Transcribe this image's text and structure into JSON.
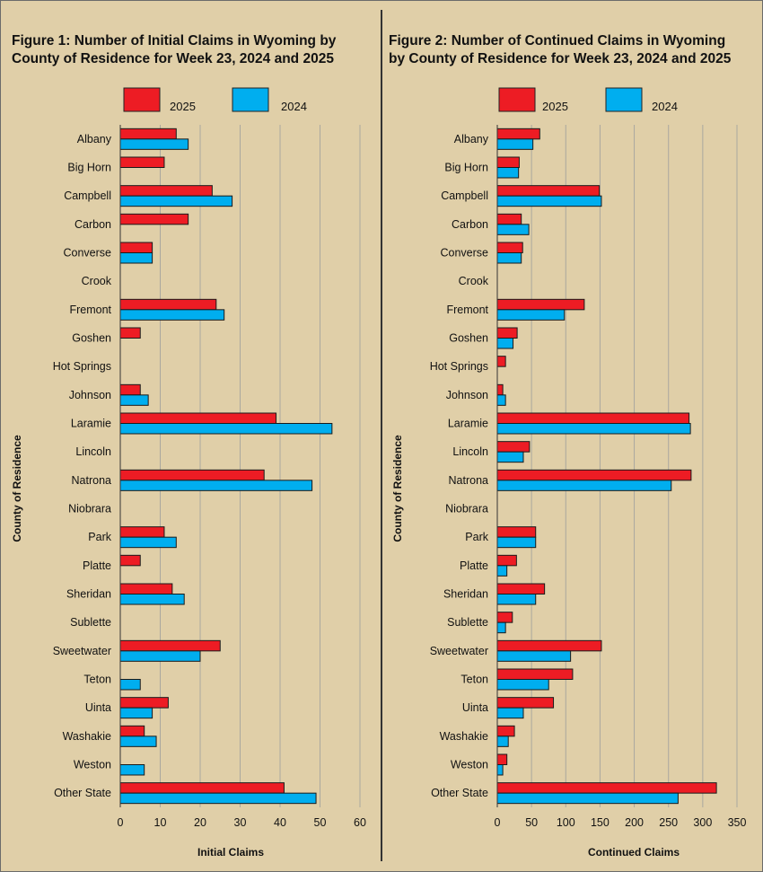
{
  "chart_data": [
    {
      "type": "bar",
      "orientation": "horizontal",
      "title": "Figure 1: Number of Initial Claims in Wyoming by County of Residence for Week 23, 2024 and 2025",
      "title_lines": [
        "Figure 1: Number of Initial Claims in Wyoming by",
        "County of Residence for Week 23, 2024 and 2025"
      ],
      "xlabel": "Initial Claims",
      "ylabel": "County of Residence",
      "xlim": [
        0,
        60
      ],
      "xticks": [
        0,
        10,
        20,
        30,
        40,
        50,
        60
      ],
      "grid": true,
      "legend_position": "top",
      "categories": [
        "Albany",
        "Big Horn",
        "Campbell",
        "Carbon",
        "Converse",
        "Crook",
        "Fremont",
        "Goshen",
        "Hot Springs",
        "Johnson",
        "Laramie",
        "Lincoln",
        "Natrona",
        "Niobrara",
        "Park",
        "Platte",
        "Sheridan",
        "Sublette",
        "Sweetwater",
        "Teton",
        "Uinta",
        "Washakie",
        "Weston",
        "Other State"
      ],
      "series": [
        {
          "name": "2025",
          "color": "#ed1c24",
          "values": [
            14,
            11,
            23,
            17,
            8,
            0,
            24,
            5,
            0,
            5,
            39,
            0,
            36,
            0,
            11,
            5,
            13,
            0,
            25,
            0,
            12,
            6,
            0,
            41
          ]
        },
        {
          "name": "2024",
          "color": "#00aeef",
          "values": [
            17,
            0,
            28,
            0,
            8,
            0,
            26,
            0,
            0,
            7,
            53,
            0,
            48,
            0,
            14,
            0,
            16,
            0,
            20,
            5,
            8,
            9,
            6,
            49
          ]
        }
      ]
    },
    {
      "type": "bar",
      "orientation": "horizontal",
      "title": "Figure 2: Number of Continued Claims in Wyoming by County of Residence for Week 23, 2024 and 2025",
      "title_lines": [
        "Figure 2: Number of Continued Claims in Wyoming",
        "by County of Residence for Week 23, 2024 and 2025"
      ],
      "xlabel": "Continued Claims",
      "ylabel": "County of Residence",
      "xlim": [
        0,
        350
      ],
      "xticks": [
        0,
        50,
        100,
        150,
        200,
        250,
        300,
        350
      ],
      "grid": true,
      "legend_position": "top",
      "categories": [
        "Albany",
        "Big Horn",
        "Campbell",
        "Carbon",
        "Converse",
        "Crook",
        "Fremont",
        "Goshen",
        "Hot Springs",
        "Johnson",
        "Laramie",
        "Lincoln",
        "Natrona",
        "Niobrara",
        "Park",
        "Platte",
        "Sheridan",
        "Sublette",
        "Sweetwater",
        "Teton",
        "Uinta",
        "Washakie",
        "Weston",
        "Other State"
      ],
      "series": [
        {
          "name": "2025",
          "color": "#ed1c24",
          "values": [
            62,
            32,
            149,
            35,
            37,
            0,
            127,
            29,
            12,
            8,
            280,
            47,
            283,
            0,
            56,
            28,
            69,
            22,
            152,
            110,
            82,
            25,
            14,
            320
          ]
        },
        {
          "name": "2024",
          "color": "#00aeef",
          "values": [
            52,
            31,
            152,
            46,
            35,
            0,
            98,
            23,
            0,
            12,
            282,
            38,
            254,
            0,
            56,
            14,
            56,
            12,
            107,
            75,
            38,
            16,
            8,
            264
          ]
        }
      ]
    }
  ]
}
